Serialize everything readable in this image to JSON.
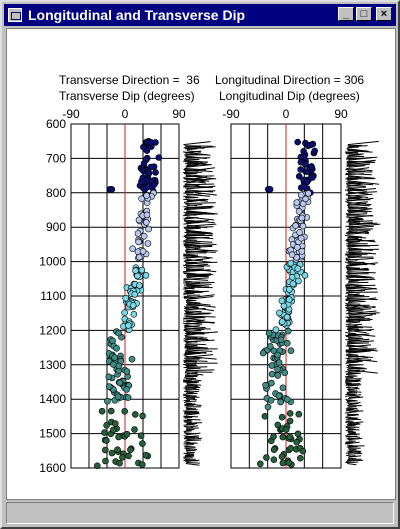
{
  "window": {
    "title": "Longitudinal and Transverse Dip"
  },
  "buttons": {
    "minimize": "_",
    "maximize": "□",
    "close": "×"
  },
  "left_panel": {
    "direction_label": "Transverse Direction =  36",
    "dip_label": "Transverse Dip (degrees)"
  },
  "right_panel": {
    "direction_label": "Longitudinal Direction = 306",
    "dip_label": "Longitudinal Dip (degrees)"
  },
  "chart_data": [
    {
      "type": "scatter",
      "title": "",
      "xlabel": "Transverse Dip (degrees)",
      "ylabel": "",
      "direction": 36,
      "xlim": [
        -90,
        90
      ],
      "ylim": [
        1600,
        600
      ],
      "x_ticks": [
        -90,
        0,
        90
      ],
      "y_ticks": [
        600,
        700,
        800,
        900,
        1000,
        1100,
        1200,
        1300,
        1400,
        1500,
        1600
      ],
      "grid": true,
      "colors": {
        "top": "#0a1070",
        "upper": "#b8c8f0",
        "middle": "#78d8e8",
        "lower": "#3e8c86",
        "bottom": "#25603a",
        "zero_line": "#cc2020"
      }
    },
    {
      "type": "scatter",
      "title": "",
      "xlabel": "Longitudinal Dip (degrees)",
      "ylabel": "",
      "direction": 306,
      "xlim": [
        -90,
        90
      ],
      "ylim": [
        1600,
        600
      ],
      "x_ticks": [
        -90,
        0,
        90
      ],
      "y_ticks": [
        600,
        700,
        800,
        900,
        1000,
        1100,
        1200,
        1300,
        1400,
        1500,
        1600
      ],
      "grid": true
    }
  ]
}
